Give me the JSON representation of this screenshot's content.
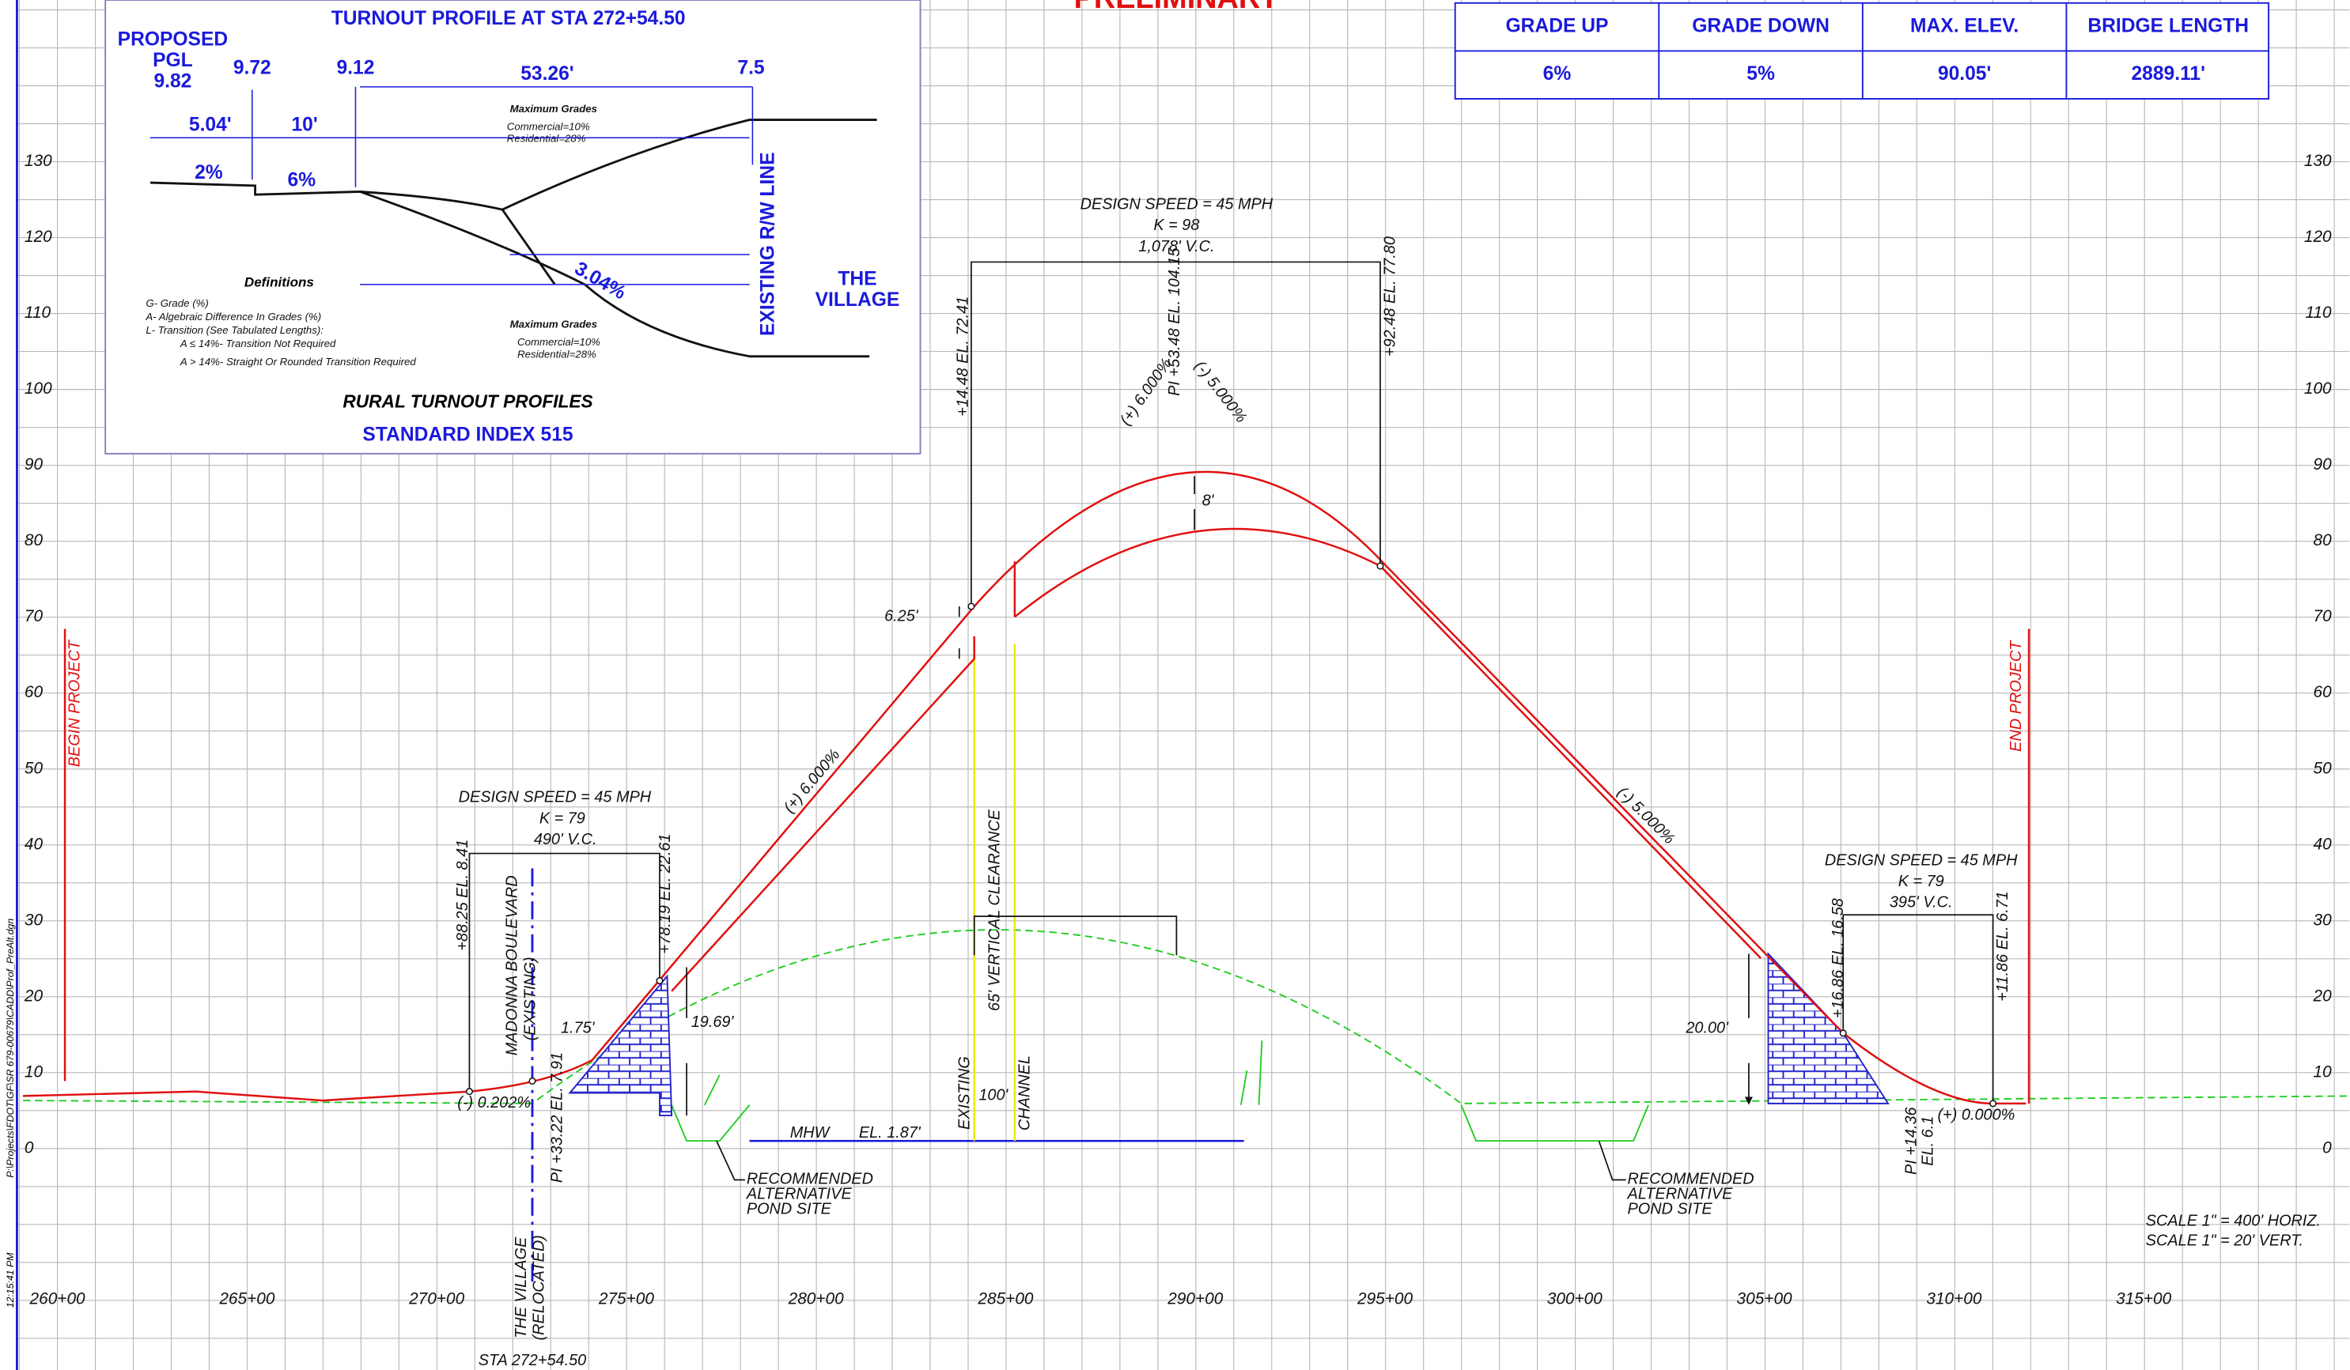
{
  "header": {
    "title": "PRELIMINARY"
  },
  "summary": {
    "columns": [
      "GRADE UP",
      "GRADE DOWN",
      "MAX. ELEV.",
      "BRIDGE LENGTH"
    ],
    "values": [
      "6%",
      "5%",
      "90.05'",
      "2889.11'"
    ]
  },
  "inset": {
    "title": "TURNOUT PROFILE AT STA 272+54.50",
    "pgl": [
      "PROPOSED",
      "PGL",
      "9.82"
    ],
    "elevations": [
      "9.72",
      "9.12",
      "7.5"
    ],
    "distances": [
      "5.04'",
      "10'",
      "53.26'"
    ],
    "grades": [
      "2%",
      "6%",
      "3.04%"
    ],
    "row_line": "EXISTING R/W LINE",
    "village": [
      "THE",
      "VILLAGE"
    ],
    "definitions_title": "Definitions",
    "definitions": [
      "G- Grade (%)",
      "A- Algebraic Difference In Grades (%)",
      "L- Transition (See Tabulated Lengths):",
      "A ≤ 14%- Transition Not Required",
      "A > 14%- Straight Or Rounded Transition Required"
    ],
    "max_grades": "Maximum Grades",
    "max_grades_values": [
      "Commercial=10%",
      "Residential=28%"
    ],
    "subtitle": "RURAL TURNOUT PROFILES",
    "index": "STANDARD INDEX 515"
  },
  "axis": {
    "elevations": [
      "130",
      "120",
      "110",
      "100",
      "90",
      "80",
      "70",
      "60",
      "50",
      "40",
      "30",
      "20",
      "10",
      "0"
    ],
    "stations": [
      "260+00",
      "265+00",
      "270+00",
      "275+00",
      "280+00",
      "285+00",
      "290+00",
      "295+00",
      "300+00",
      "305+00",
      "310+00",
      "315+00"
    ]
  },
  "profile": {
    "left_curve": {
      "speed": "DESIGN SPEED = 45 MPH",
      "k": "K = 79",
      "vc": "490' V.C.",
      "pc": "+88.25 EL. 8.41",
      "pt": "+78.19 EL. 22.61",
      "pi": "PI +33.22 EL. 7.91",
      "grade": "(-) 0.202%",
      "offset": "1.75'",
      "height": "19.69'",
      "road": [
        "MADONNA BOULEVARD",
        "(EXISTING)"
      ]
    },
    "crest_curve": {
      "speed": "DESIGN SPEED = 45 MPH",
      "k": "K = 98",
      "vc": "1,078' V.C.",
      "pc": "+14.48 EL. 72.41",
      "pi": "PI +53.48 EL. 104.15",
      "pt": "+92.48 EL. 77.80",
      "grade_in": "(+) 6.000%",
      "grade_out": "(-) 5.000%",
      "depth": "8'",
      "step": "6.25'"
    },
    "grade_up": "(+) 6.000%",
    "grade_down": "(-) 5.000%",
    "clearance": "65' VERTICAL CLEARANCE",
    "channel": [
      "EXISTING",
      "CHANNEL"
    ],
    "channel_width": "100'",
    "mhw": "MHW",
    "mhw_el": "EL. 1.87'",
    "right_curve": {
      "speed": "DESIGN SPEED = 45 MPH",
      "k": "K = 79",
      "vc": "395' V.C.",
      "pc": "+16.86 EL. 16.58",
      "pt": "+11.86 EL. 6.71",
      "pi": [
        "PI +14.36",
        "EL. 6.1"
      ],
      "grade": "(+) 0.000%",
      "height": "20.00'"
    },
    "pond_left": [
      "RECOMMENDED",
      "ALTERNATIVE",
      "POND SITE"
    ],
    "pond_right": [
      "RECOMMENDED",
      "ALTERNATIVE",
      "POND SITE"
    ],
    "begin": "BEGIN PROJECT",
    "end": "END PROJECT",
    "scale": [
      "SCALE 1\" = 400' HORIZ.",
      "SCALE 1\" = 20' VERT."
    ],
    "village": [
      "THE VILLAGE",
      "(RELOCATED)"
    ],
    "station": "STA 272+54.50"
  },
  "margin": {
    "file": "P:\\Projects\\FDOT\\GF\\SR 679-00679\\CADD\\Prof_PreAlt.dgn",
    "time": "12:15:41 PM"
  }
}
